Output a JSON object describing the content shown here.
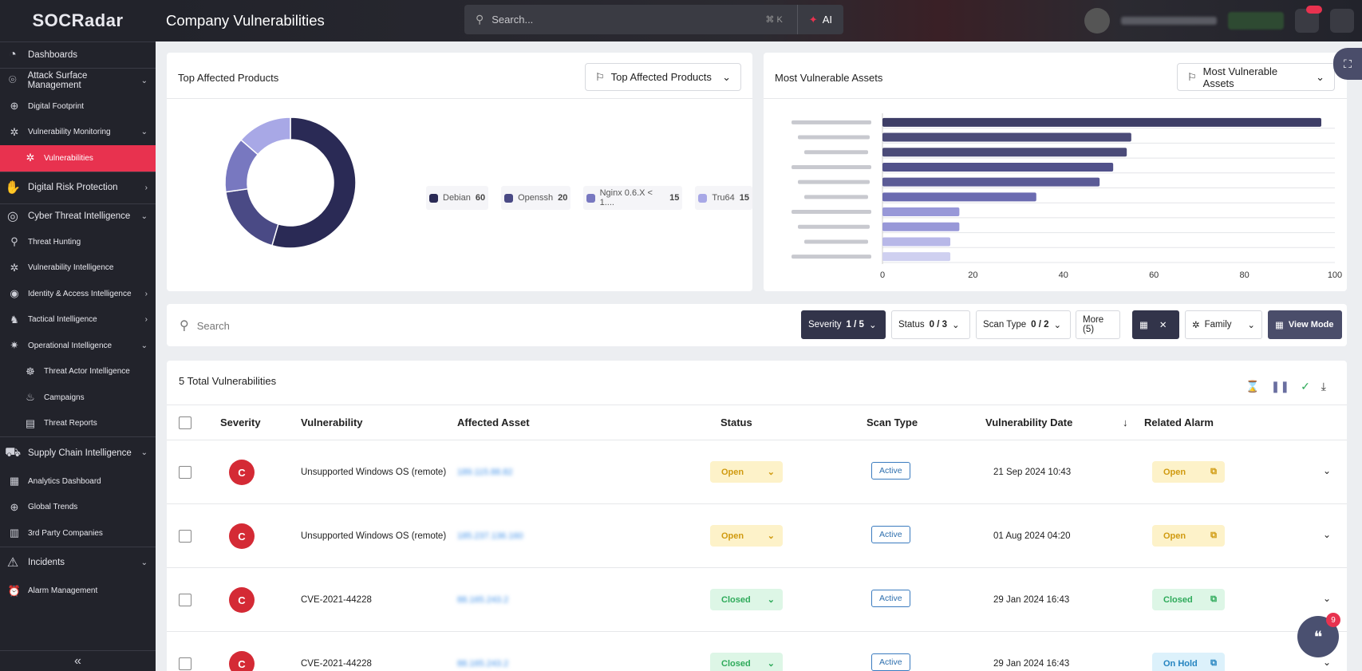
{
  "app": {
    "logo": "SOCRadar"
  },
  "header": {
    "title": "Company Vulnerabilities",
    "search_placeholder": "Search...",
    "shortcut": "⌘  K",
    "ai_label": "AI"
  },
  "sidebar": {
    "items": [
      {
        "label": "Dashboards",
        "icon": "dashboard-icon"
      },
      {
        "label": "Attack Surface Management",
        "icon": "asm-icon"
      },
      {
        "label": "Digital Footprint",
        "icon": "globe-icon"
      },
      {
        "label": "Vulnerability Monitoring",
        "icon": "bug-icon"
      },
      {
        "label": "Vulnerabilities",
        "icon": "bug-icon"
      },
      {
        "label": "Digital Risk Protection",
        "icon": "hand-icon"
      },
      {
        "label": "Cyber Threat Intelligence",
        "icon": "target-icon"
      },
      {
        "label": "Threat Hunting",
        "icon": "search-icon"
      },
      {
        "label": "Vulnerability Intelligence",
        "icon": "bug-icon"
      },
      {
        "label": "Identity & Access Intelligence",
        "icon": "fingerprint-icon"
      },
      {
        "label": "Tactical Intelligence",
        "icon": "chess-icon"
      },
      {
        "label": "Operational Intelligence",
        "icon": "gear-icon"
      },
      {
        "label": "Threat Actor Intelligence",
        "icon": "actor-icon"
      },
      {
        "label": "Campaigns",
        "icon": "flame-icon"
      },
      {
        "label": "Threat Reports",
        "icon": "report-icon"
      },
      {
        "label": "Supply Chain Intelligence",
        "icon": "supply-icon"
      },
      {
        "label": "Analytics Dashboard",
        "icon": "analytics-icon"
      },
      {
        "label": "Global Trends",
        "icon": "globe-icon"
      },
      {
        "label": "3rd Party Companies",
        "icon": "building-icon"
      },
      {
        "label": "Incidents",
        "icon": "alert-icon"
      },
      {
        "label": "Alarm Management",
        "icon": "alarm-icon"
      }
    ]
  },
  "top_affected": {
    "title": "Top Affected Products",
    "select_label": "Top Affected Products",
    "colors": [
      "#2a2a55",
      "#4a4a85",
      "#7878c0",
      "#a8a8e6"
    ]
  },
  "most_vulnerable": {
    "title": "Most Vulnerable Assets",
    "select_label": "Most Vulnerable Assets",
    "colors": [
      "#3d3d66",
      "#4b4b78",
      "#4b4b78",
      "#51518a",
      "#5b5b96",
      "#6b6bb0",
      "#9898d8",
      "#9898d8",
      "#b8b8e8",
      "#cfd0f0"
    ]
  },
  "chart_data": [
    {
      "type": "pie",
      "categories": [
        "Debian",
        "Openssh",
        "Nginx 0.6.X < 1....",
        "Tru64"
      ],
      "values": [
        60,
        20,
        15,
        15
      ]
    },
    {
      "type": "bar",
      "orientation": "horizontal",
      "categories": [
        "",
        "",
        "",
        "",
        "",
        "",
        "",
        "",
        "",
        ""
      ],
      "values": [
        97,
        55,
        54,
        51,
        48,
        34,
        17,
        17,
        15,
        15
      ],
      "xlim": [
        0,
        100
      ],
      "xticks": [
        "0",
        "20",
        "40",
        "60",
        "80",
        "100"
      ],
      "grid": true
    }
  ],
  "filters": {
    "search_placeholder": "Search",
    "severity_label": "Severity",
    "severity_count": "1 / 5",
    "status_label": "Status",
    "status_count": "0 / 3",
    "scan_label": "Scan Type",
    "scan_count": "0 / 2",
    "more_label": "More (5)",
    "family_label": "Family",
    "view_mode_label": "View Mode"
  },
  "table": {
    "total_label": "5 Total Vulnerabilities",
    "columns": {
      "severity": "Severity",
      "vulnerability": "Vulnerability",
      "asset": "Affected Asset",
      "status": "Status",
      "scan": "Scan Type",
      "date": "Vulnerability Date",
      "alarm": "Related Alarm"
    },
    "rows": [
      {
        "sev": "C",
        "vuln": "Unsupported Windows OS (remote)",
        "asset": "189.115.88.82",
        "status": "Open",
        "scan": "Active",
        "date": "21 Sep 2024 10:43",
        "alarm": "Open"
      },
      {
        "sev": "C",
        "vuln": "Unsupported Windows OS (remote)",
        "asset": "185.237.136.160",
        "status": "Open",
        "scan": "Active",
        "date": "01 Aug 2024 04:20",
        "alarm": "Open"
      },
      {
        "sev": "C",
        "vuln": "CVE-2021-44228",
        "asset": "88.165.243.2",
        "status": "Closed",
        "scan": "Active",
        "date": "29 Jan 2024 16:43",
        "alarm": "Closed"
      },
      {
        "sev": "C",
        "vuln": "CVE-2021-44228",
        "asset": "88.165.243.2",
        "status": "Closed",
        "scan": "Active",
        "date": "29 Jan 2024 16:43",
        "alarm": "On Hold"
      }
    ]
  },
  "help": {
    "badge": "9"
  }
}
